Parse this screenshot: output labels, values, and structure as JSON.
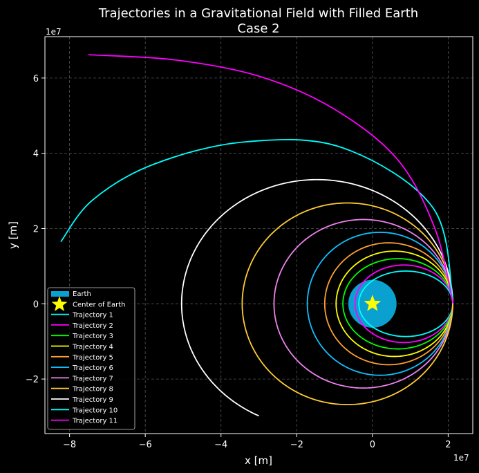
{
  "chart_data": {
    "type": "line",
    "title": "Trajectories in a Gravitational Field with Filled Earth",
    "subtitle": "Case 2",
    "xlabel": "x [m]",
    "ylabel": "y [m]",
    "x_exponent": "1e7",
    "y_exponent": "1e7",
    "xlim": [
      -86500000,
      26500000
    ],
    "ylim": [
      -34500000,
      71000000
    ],
    "xticks": [
      -80000000,
      -60000000,
      -40000000,
      -20000000,
      0,
      20000000
    ],
    "xtick_labels": [
      "−8",
      "−6",
      "−4",
      "−2",
      "0",
      "2"
    ],
    "yticks": [
      -20000000,
      0,
      20000000,
      40000000,
      60000000
    ],
    "ytick_labels": [
      "−2",
      "0",
      "2",
      "4",
      "6"
    ],
    "grid": true,
    "legend_position": "lower-left",
    "earth": {
      "label": "Earth",
      "radius": 6371000,
      "color": "#0aa0d0"
    },
    "center": {
      "label": "Center of Earth",
      "x": 0,
      "y": 0,
      "color": "#ffff00"
    },
    "series": [
      {
        "name": "Trajectory 1",
        "color": "#00ffff",
        "ellipse": {
          "cx": 8800000,
          "a": 12400000,
          "b": 8700000
        }
      },
      {
        "name": "Trajectory 2",
        "color": "#ff00ff",
        "ellipse": {
          "cx": 8300000,
          "a": 12900000,
          "b": 10300000
        }
      },
      {
        "name": "Trajectory 3",
        "color": "#00ff00",
        "ellipse": {
          "cx": 6700000,
          "a": 14500000,
          "b": 12000000
        }
      },
      {
        "name": "Trajectory 4",
        "color": "#ffff00",
        "ellipse": {
          "cx": 5800000,
          "a": 15400000,
          "b": 14000000
        }
      },
      {
        "name": "Trajectory 5",
        "color": "#ffa030",
        "ellipse": {
          "cx": 4300000,
          "a": 16900000,
          "b": 16200000
        }
      },
      {
        "name": "Trajectory 6",
        "color": "#10c0ff",
        "ellipse": {
          "cx": 2000000,
          "a": 19200000,
          "b": 19000000
        }
      },
      {
        "name": "Trajectory 7",
        "color": "#ee82ee",
        "ellipse": {
          "cx": -2400000,
          "a": 23600000,
          "b": 22400000
        }
      },
      {
        "name": "Trajectory 8",
        "color": "#ffcc33",
        "ellipse": {
          "cx": -6600000,
          "a": 27800000,
          "b": 26800000
        }
      },
      {
        "name": "Trajectory 9",
        "color": "#ffffff",
        "ellipse": {
          "cx": -14600000,
          "a": 35800000,
          "b": 33000000,
          "end_x": -30000000,
          "end_y": -29500000
        }
      },
      {
        "name": "Trajectory 10",
        "color": "#00ffff",
        "spiral": {
          "rotate_deg": 270,
          "scale": 1,
          "bulge": 1,
          "points": [
            [
              21300000,
              0
            ],
            [
              16000000,
              25500000
            ],
            [
              -8000000,
              41500000
            ],
            [
              -34000000,
              43000000
            ],
            [
              -58000000,
              37000000
            ],
            [
              -74000000,
              27500000
            ],
            [
              -82300000,
              16500000
            ]
          ]
        }
      },
      {
        "name": "Trajectory 11",
        "color": "#ff00ff",
        "spiral": {
          "points": [
            [
              21300000,
              0
            ],
            [
              16500000,
              20000000
            ],
            [
              6500000,
              38500000
            ],
            [
              -10500000,
              52000000
            ],
            [
              -30000000,
              60500000
            ],
            [
              -52000000,
              64800000
            ],
            [
              -75000000,
              66200000
            ]
          ]
        }
      }
    ]
  }
}
